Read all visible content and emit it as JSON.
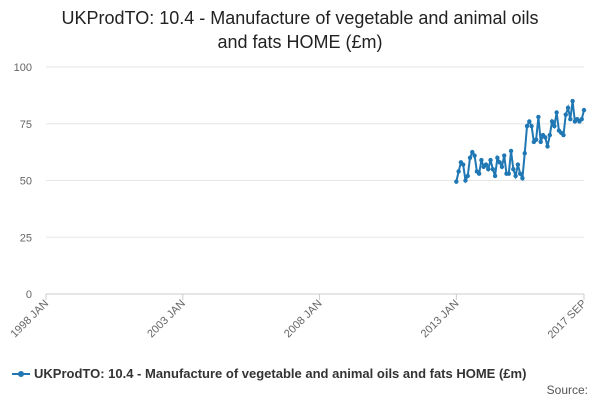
{
  "title_line1": "UKProdTO: 10.4 - Manufacture of vegetable and animal oils",
  "title_line2": "and fats HOME (£m)",
  "legend_label": "UKProdTO: 10.4 - Manufacture of vegetable and animal oils and fats HOME (£m)",
  "source_label": "Source:",
  "colors": {
    "series": "#1f77b4",
    "grid": "#e6e6e6",
    "axis": "#cccccc"
  },
  "chart_data": {
    "type": "line",
    "title": "UKProdTO: 10.4 - Manufacture of vegetable and animal oils and fats HOME (£m)",
    "xlabel": "",
    "ylabel": "",
    "ylim": [
      0,
      100
    ],
    "yticks": [
      0,
      25,
      50,
      75,
      100
    ],
    "xlim": [
      "1998-01",
      "2017-09"
    ],
    "xticks": [
      "1998 JAN",
      "2003 JAN",
      "2008 JAN",
      "2013 JAN",
      "2017 SEP"
    ],
    "xtick_dates": [
      "1998-01",
      "2003-01",
      "2008-01",
      "2013-01",
      "2017-09"
    ],
    "grid": true,
    "legend_position": "bottom",
    "series": [
      {
        "name": "UKProdTO: 10.4 - Manufacture of vegetable and animal oils and fats HOME (£m)",
        "x": [
          "2013-01",
          "2013-02",
          "2013-03",
          "2013-04",
          "2013-05",
          "2013-06",
          "2013-07",
          "2013-08",
          "2013-09",
          "2013-10",
          "2013-11",
          "2013-12",
          "2014-01",
          "2014-02",
          "2014-03",
          "2014-04",
          "2014-05",
          "2014-06",
          "2014-07",
          "2014-08",
          "2014-09",
          "2014-10",
          "2014-11",
          "2014-12",
          "2015-01",
          "2015-02",
          "2015-03",
          "2015-04",
          "2015-05",
          "2015-06",
          "2015-07",
          "2015-08",
          "2015-09",
          "2015-10",
          "2015-11",
          "2015-12",
          "2016-01",
          "2016-02",
          "2016-03",
          "2016-04",
          "2016-05",
          "2016-06",
          "2016-07",
          "2016-08",
          "2016-09",
          "2016-10",
          "2016-11",
          "2016-12",
          "2017-01",
          "2017-02",
          "2017-03",
          "2017-04",
          "2017-05",
          "2017-06",
          "2017-07",
          "2017-08",
          "2017-09"
        ],
        "values": [
          49.5,
          54,
          58,
          57,
          50,
          52,
          60,
          62.5,
          61,
          54,
          53,
          59,
          56,
          57,
          55,
          59,
          55,
          52,
          60,
          58,
          56,
          61,
          53,
          53,
          63,
          55,
          52,
          57,
          53,
          51,
          62,
          74,
          76,
          74,
          67,
          68,
          78,
          67,
          70,
          69,
          65,
          70,
          76,
          74,
          80,
          72,
          71,
          70,
          79,
          82,
          77,
          85,
          76,
          77,
          76,
          77,
          81
        ]
      }
    ]
  }
}
